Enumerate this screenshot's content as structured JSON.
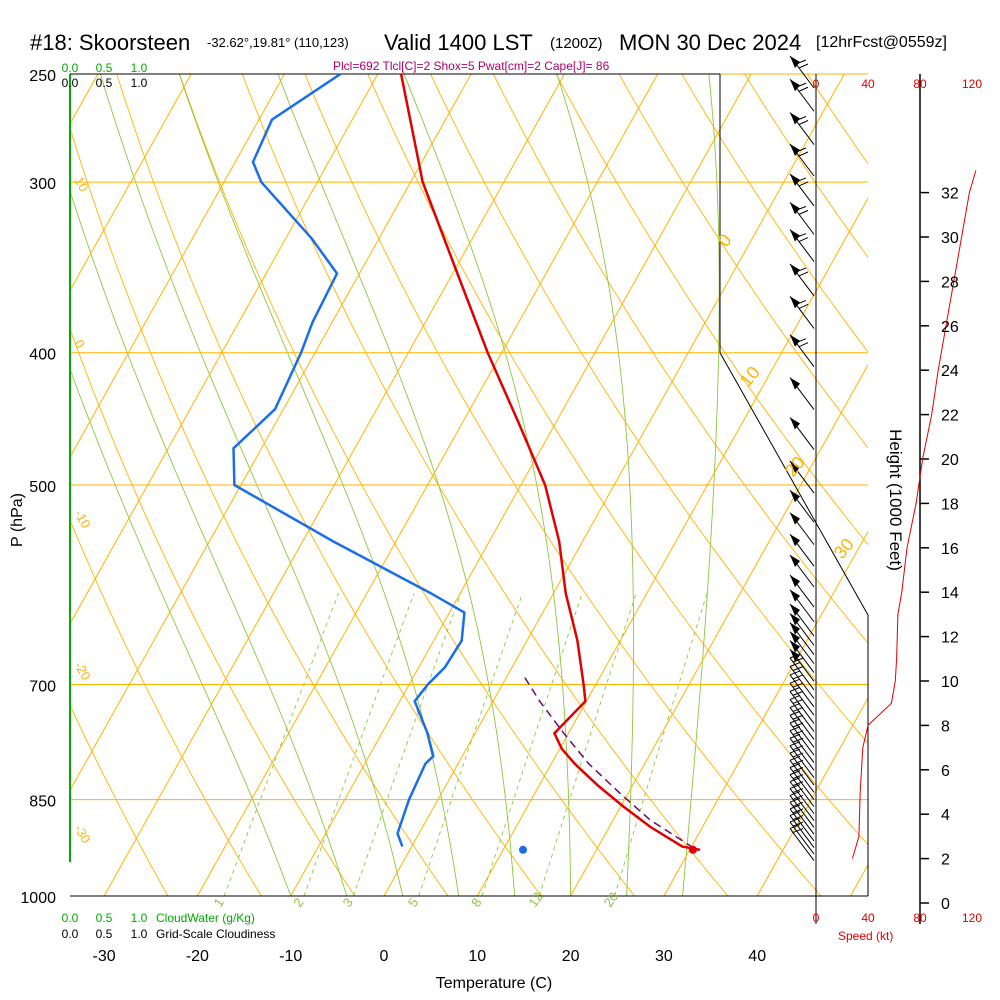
{
  "header": {
    "station": "#18: Skoorsteen",
    "coords": "-32.62°,19.81° (110,123)",
    "valid": "Valid 1400 LST",
    "zulu": "(1200Z)",
    "date": "MON 30 Dec 2024",
    "forecast": "[12hrFcst@0559z]",
    "indices": "Plcl=692 Tlcl[C]=2 Shox=5 Pwat[cm]=2 Cape[J]= 86"
  },
  "colors": {
    "isotherm": "#ffb300",
    "dry_adiabat": "#ffb300",
    "moist_adiabat": "#8cc63f",
    "mixing_ratio": "#8cc63f",
    "temperature": "#e00000",
    "dewpoint": "#1a6fe8",
    "parcel": "#6a0a6a",
    "cloud_scale": "#00aa00",
    "height": "#e00000"
  },
  "chart_data": {
    "type": "skew-t",
    "xlabel": "Temperature (C)",
    "ylabel": "P (hPa)",
    "y2label": "Height (1000 Feet)",
    "x_ticks": [
      "-30",
      "-20",
      "-10",
      "0",
      "10",
      "20",
      "30",
      "40"
    ],
    "x_tick_values": [
      -30,
      -20,
      -10,
      0,
      10,
      20,
      30,
      40
    ],
    "p_levels": [
      250,
      300,
      400,
      500,
      700,
      850,
      1000
    ],
    "height_ticks": [
      "0",
      "2",
      "4",
      "6",
      "8",
      "10",
      "12",
      "14",
      "16",
      "18",
      "20",
      "22",
      "24",
      "26",
      "28",
      "30",
      "32"
    ],
    "speed_ticks": [
      "0",
      "40",
      "80",
      "120"
    ],
    "speed_label": "Speed (kt)",
    "cloud_scale_top": [
      "0.0",
      "0.5",
      "1.0"
    ],
    "cloud_scale_bottom": [
      "0.0",
      "0.5",
      "1.0"
    ],
    "cloudwater_label": "CloudWater (g/Kg)",
    "cloudiness_label": "Grid-Scale Cloudiness",
    "dry_adiabat_labels": [
      "10",
      "0",
      "-10",
      "-20",
      "-30"
    ],
    "theta_labels": [
      "0",
      "10",
      "20",
      "30"
    ],
    "mixing_ratio_labels": [
      "1",
      "2",
      "3",
      "5",
      "8",
      "12",
      "20"
    ],
    "temperature": {
      "name": "Temperature",
      "p": [
        250,
        300,
        350,
        400,
        450,
        500,
        550,
        600,
        650,
        700,
        720,
        760,
        780,
        800,
        830,
        860,
        890,
        920,
        925
      ],
      "t": [
        -47.5,
        -38.7,
        -29.5,
        -21.5,
        -14.0,
        -7.4,
        -2.5,
        1.3,
        5.4,
        8.7,
        9.9,
        8.5,
        10.2,
        12.5,
        16.3,
        20.3,
        24.4,
        29.0,
        31.1
      ]
    },
    "dewpoint": {
      "name": "Dewpoint",
      "p": [
        250,
        270,
        290,
        300,
        330,
        350,
        380,
        400,
        440,
        470,
        500,
        550,
        600,
        620,
        650,
        680,
        700,
        720,
        760,
        790,
        800,
        850,
        900,
        920
      ],
      "td": [
        -54.0,
        -58.6,
        -58.1,
        -56.0,
        -47.2,
        -42.4,
        -42.1,
        -41.5,
        -40.9,
        -43.0,
        -40.7,
        -26.7,
        -13.2,
        -8.4,
        -7.0,
        -7.2,
        -8.0,
        -8.4,
        -5.1,
        -3.1,
        -3.5,
        -3.1,
        -2.3,
        -1.0
      ]
    },
    "parcel": {
      "name": "Parcel",
      "p": [
        692,
        720,
        760,
        800,
        840,
        880,
        920
      ],
      "t": [
        2.0,
        5.0,
        9.5,
        14.0,
        19.0,
        24.0,
        30.0
      ]
    },
    "surface_temperature": 33,
    "surface_dewpoint": 15,
    "height_ft": {
      "thousands_ft": [
        2,
        3,
        5,
        7,
        8,
        9,
        10,
        11,
        13,
        14,
        16,
        18,
        20,
        22,
        24,
        26,
        28,
        30,
        32,
        33
      ],
      "speed_kt": [
        28,
        33,
        34,
        36,
        40,
        58,
        61,
        62,
        63,
        66,
        70,
        77,
        82,
        89,
        94,
        100,
        106,
        112,
        118,
        123
      ]
    },
    "wind_barb_pressures": [
      250,
      260,
      275,
      290,
      305,
      320,
      335,
      355,
      375,
      400,
      430,
      460,
      495,
      520,
      540,
      560,
      580,
      600,
      615,
      630,
      640,
      650,
      660,
      670,
      680,
      690,
      700,
      710,
      720,
      730,
      740,
      750,
      760,
      770,
      780,
      790,
      800,
      810,
      820,
      830,
      840,
      850,
      860,
      870,
      880,
      890,
      900,
      910,
      920
    ]
  }
}
